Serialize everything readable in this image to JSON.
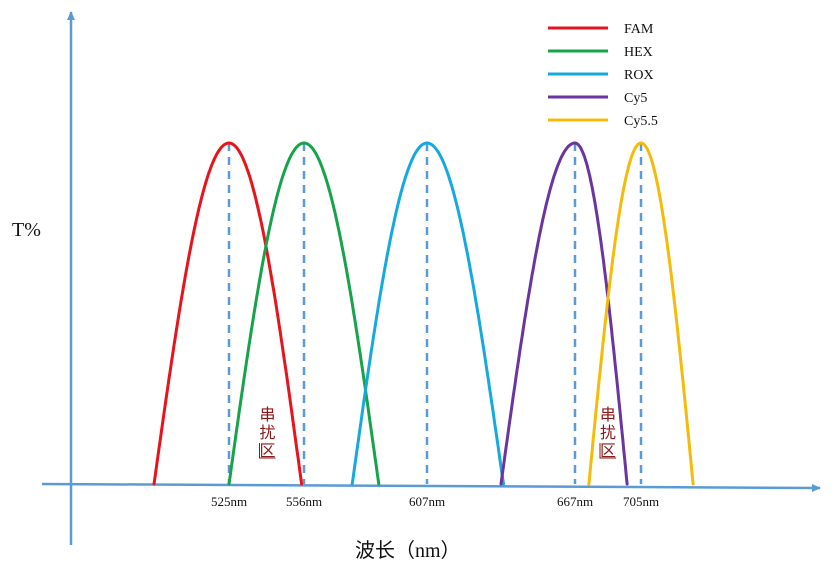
{
  "chart_data": {
    "type": "line",
    "title": "",
    "xlabel": "波长（nm）",
    "ylabel": "T%",
    "x_ticks": [
      "525nm",
      "556nm",
      "607nm",
      "667nm",
      "705nm"
    ],
    "crosstalk_label": "串扰区",
    "series": [
      {
        "name": "FAM",
        "color": "#e8141c",
        "peak": 525,
        "start": 494,
        "end": 555
      },
      {
        "name": "HEX",
        "color": "#16a34a",
        "peak": 556,
        "start": 525,
        "end": 587
      },
      {
        "name": "ROX",
        "color": "#15a9e0",
        "peak": 607,
        "start": 576,
        "end": 638
      },
      {
        "name": "Cy5",
        "color": "#6b35a0",
        "peak": 667,
        "start": 637,
        "end": 697
      },
      {
        "name": "Cy5.5",
        "color": "#f5bb0a",
        "peak": 705,
        "start": 675,
        "end": 735
      }
    ],
    "legend_position": "top-right",
    "grid": false
  }
}
